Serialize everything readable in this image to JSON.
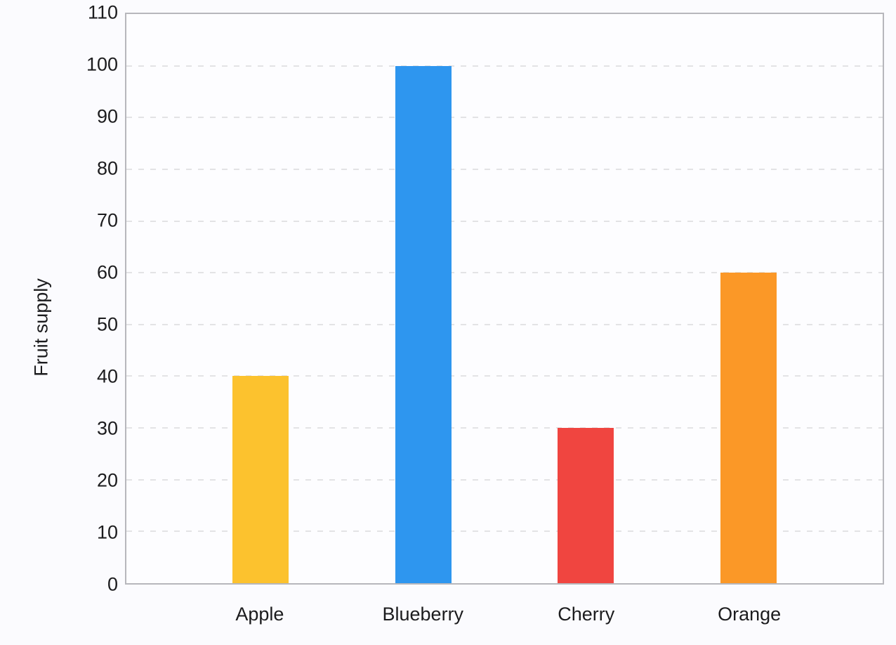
{
  "chart_data": {
    "type": "bar",
    "categories": [
      "Apple",
      "Blueberry",
      "Cherry",
      "Orange"
    ],
    "values": [
      40,
      100,
      30,
      60
    ],
    "bar_colors": [
      "#fcc22e",
      "#2e96ef",
      "#f04540",
      "#fb9827"
    ],
    "title": "",
    "xlabel": "",
    "ylabel": "Fruit supply",
    "ylim": [
      0,
      110
    ],
    "yticks": [
      0,
      10,
      20,
      30,
      40,
      50,
      60,
      70,
      80,
      90,
      100,
      110
    ],
    "grid": "horizontal-dashed",
    "legend_position": "none"
  },
  "colors": {
    "page_background": "#fbfbfe",
    "plot_background": "#fdfdff",
    "axis_border": "#b7b7bc",
    "gridline": "#e3e3e5",
    "text": "#1c1c1e"
  }
}
